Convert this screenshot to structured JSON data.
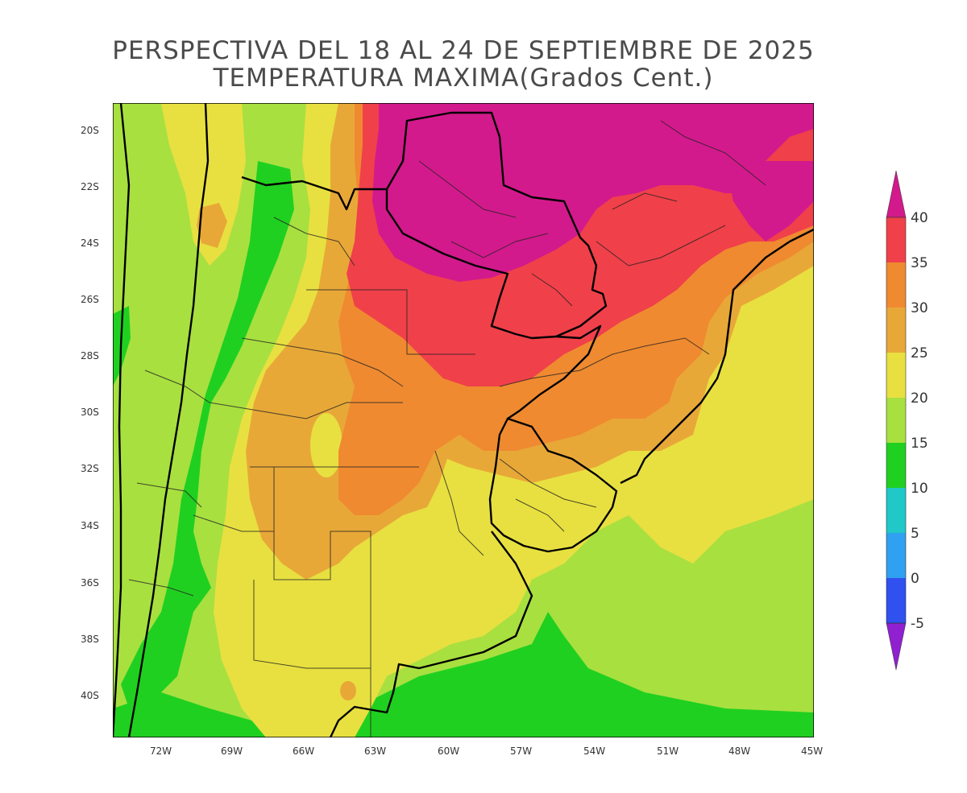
{
  "header": {
    "title_line1": "PERSPECTIVA DEL 18 AL 24 DE SEPTIEMBRE DE 2025",
    "title_line2": "TEMPERATURA MAXIMA(Grados Cent.)"
  },
  "map": {
    "lat_labels": [
      "20S",
      "22S",
      "24S",
      "26S",
      "28S",
      "30S",
      "32S",
      "34S",
      "36S",
      "38S",
      "40S"
    ],
    "lon_labels": [
      "72W",
      "69W",
      "66W",
      "63W",
      "60W",
      "57W",
      "54W",
      "51W",
      "48W",
      "45W"
    ]
  },
  "colorbar": {
    "labels": [
      "40",
      "35",
      "30",
      "25",
      "20",
      "15",
      "10",
      "5",
      "0",
      "-5"
    ],
    "colors": {
      "above_40": "#d21a8c",
      "35_40": "#f0404a",
      "30_35": "#ef8a30",
      "25_30": "#e8a838",
      "20_25": "#e8e040",
      "15_20": "#a8e040",
      "10_15": "#20d020",
      "5_10": "#20c8c8",
      "0_5": "#30a0f0",
      "m5_0": "#3050f0",
      "below_m5": "#9020d0"
    }
  }
}
